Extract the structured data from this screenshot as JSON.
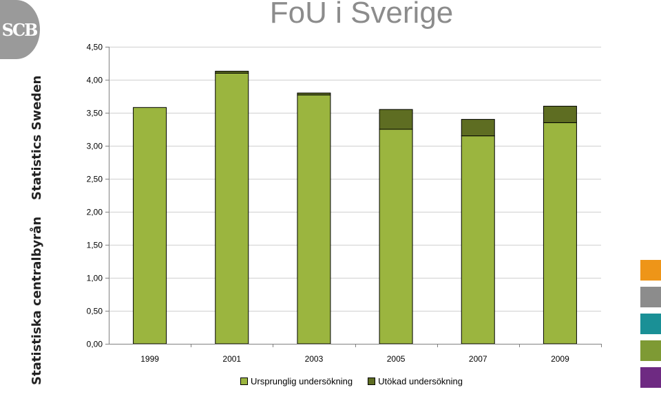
{
  "org": {
    "logo_text": "SCB",
    "name_sv": "Statistiska centralbyrån",
    "name_en": "Statistics Sweden"
  },
  "colors": {
    "base_series": "#9bb53f",
    "extended_series": "#5e6d22",
    "title": "#8c8c8c",
    "logo": "#9a9a9a",
    "gridline": "#cfcfcf",
    "swatches": [
      "#ee9518",
      "#8c8c8c",
      "#1a9096",
      "#7e9a34",
      "#6e2a82"
    ]
  },
  "chart_data": {
    "type": "bar",
    "stacked": true,
    "title": "FoU i Sverige",
    "xlabel": "",
    "ylabel": "",
    "categories": [
      "1999",
      "2001",
      "2003",
      "2005",
      "2007",
      "2009"
    ],
    "series": [
      {
        "name": "Ursprunglig undersökning",
        "values": [
          3.58,
          4.1,
          3.77,
          3.25,
          3.15,
          3.35
        ]
      },
      {
        "name": "Utökad undersökning",
        "values": [
          0.0,
          0.03,
          0.03,
          0.3,
          0.25,
          0.25
        ]
      }
    ],
    "ylim": [
      0,
      4.5
    ],
    "yticks": [
      "0,00",
      "0,50",
      "1,00",
      "1,50",
      "2,00",
      "2,50",
      "3,00",
      "3,50",
      "4,00",
      "4,50"
    ],
    "grid": true,
    "legend_position": "bottom"
  }
}
